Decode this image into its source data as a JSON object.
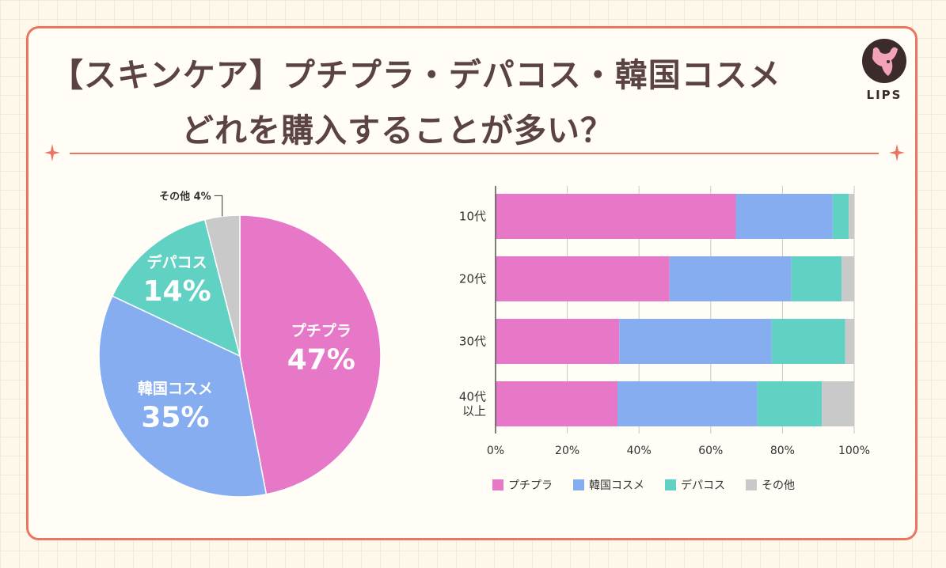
{
  "title_line1": "【スキンケア】プチプラ・デパコス・韓国コスメ",
  "title_line2": "どれを購入することが多い？",
  "logo_text": "LIPS",
  "colors": {
    "petit": "#e778c8",
    "korean": "#86adf0",
    "depa": "#60d1c3",
    "other": "#c9c9c9",
    "accent": "#ec7561"
  },
  "chart_data": [
    {
      "type": "pie",
      "slices": [
        {
          "label": "プチプラ",
          "value": 47,
          "display": "47%"
        },
        {
          "label": "韓国コスメ",
          "value": 35,
          "display": "35%"
        },
        {
          "label": "デパコス",
          "value": 14,
          "display": "14%"
        },
        {
          "label": "その他",
          "value": 4,
          "display": "4%"
        }
      ]
    },
    {
      "type": "bar",
      "orientation": "horizontal",
      "stacked": "percent",
      "categories": [
        "10代",
        "20代",
        "30代",
        "40代\n以上"
      ],
      "series": [
        {
          "name": "プチプラ",
          "values": [
            67,
            48.5,
            34.5,
            34
          ]
        },
        {
          "name": "韓国コスメ",
          "values": [
            27,
            34,
            42.5,
            39
          ]
        },
        {
          "name": "デパコス",
          "values": [
            4.5,
            14,
            20.5,
            18
          ]
        },
        {
          "name": "その他",
          "values": [
            1.5,
            3.5,
            2.5,
            9
          ]
        }
      ],
      "xlim": [
        0,
        100
      ],
      "xticks": [
        "0%",
        "20%",
        "40%",
        "60%",
        "80%",
        "100%"
      ],
      "grid": true,
      "legend": "bottom"
    }
  ]
}
